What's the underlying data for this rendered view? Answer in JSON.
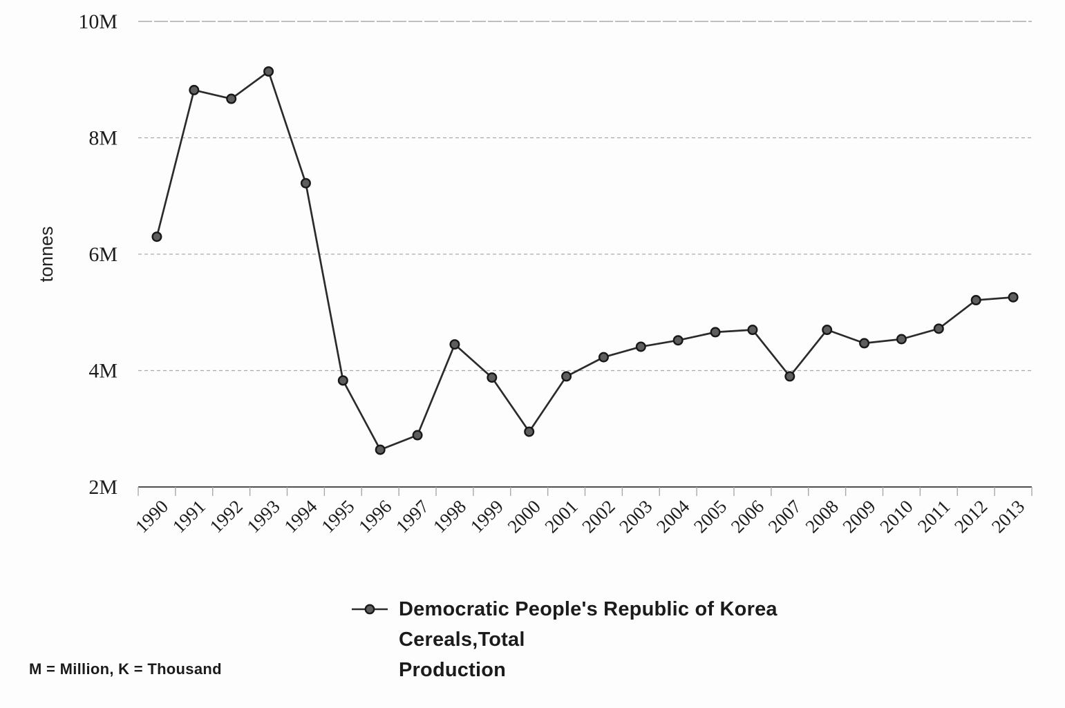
{
  "figure": {
    "footnote": "M = Million, K = Thousand",
    "background": "#fdfdfd"
  },
  "chart_data": {
    "type": "line",
    "title": "",
    "xlabel": "",
    "ylabel": "tonnes",
    "x": [
      1990,
      1991,
      1992,
      1993,
      1994,
      1995,
      1996,
      1997,
      1998,
      1999,
      2000,
      2001,
      2002,
      2003,
      2004,
      2005,
      2006,
      2007,
      2008,
      2009,
      2010,
      2011,
      2012,
      2013
    ],
    "series": [
      {
        "name": "Democratic People's Republic of Korea Cereals,Total Production",
        "unit": "million tonnes",
        "values": [
          6.3,
          8.82,
          8.67,
          9.14,
          7.22,
          3.83,
          2.64,
          2.89,
          4.45,
          3.88,
          2.95,
          3.9,
          4.23,
          4.41,
          4.52,
          4.66,
          4.7,
          3.9,
          4.7,
          4.47,
          4.54,
          4.72,
          5.21,
          5.26
        ]
      }
    ],
    "ylim": [
      2,
      10
    ],
    "yticks": [
      {
        "value": 2,
        "label": "2M"
      },
      {
        "value": 4,
        "label": "4M"
      },
      {
        "value": 6,
        "label": "6M"
      },
      {
        "value": 8,
        "label": "8M"
      },
      {
        "value": 10,
        "label": "10M"
      }
    ],
    "grid": "horizontal-dashed",
    "marker": "circle",
    "legend_position": "bottom-center",
    "legend_lines": [
      "Democratic People's Republic of Korea",
      "Cereals,Total",
      "Production"
    ],
    "colors": {
      "line": "#2b2b2b",
      "marker_fill": "#5e5e5e",
      "marker_edge": "#181818",
      "grid_top": "#999999",
      "grid_dashed": "#aaaaaa",
      "axis": "#4f4f4f",
      "tick": "#a8a8a8",
      "text": "#1c1c1c"
    }
  }
}
